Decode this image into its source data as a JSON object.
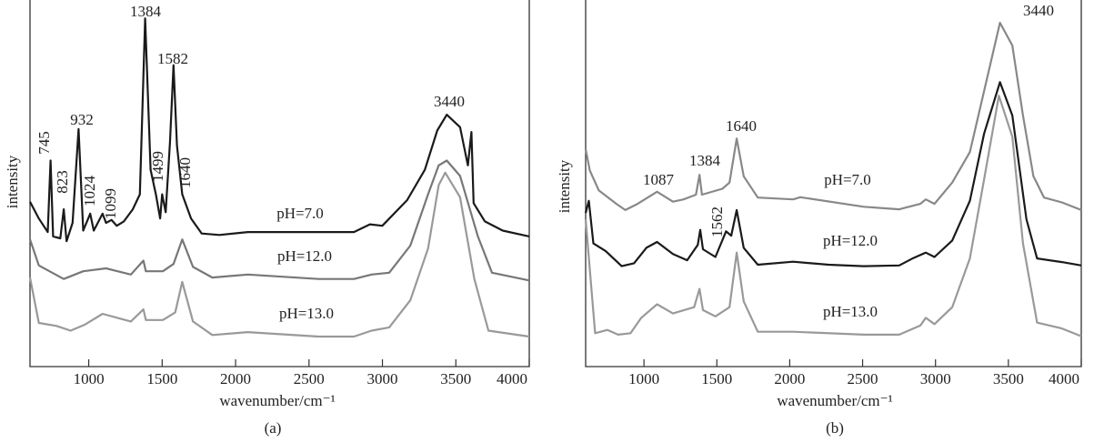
{
  "chart_data": [
    {
      "type": "line",
      "panel_label": "(a)",
      "xlabel": "wavenumber/cm⁻¹",
      "ylabel": "intensity",
      "xlim": [
        600,
        4000
      ],
      "ylim": [
        0,
        100
      ],
      "xticks": [
        1000,
        1500,
        2000,
        2500,
        3000,
        3500,
        4000
      ],
      "y_ticks_shown": false,
      "grid": false,
      "annotations": [
        "1384",
        "1582",
        "932",
        "745",
        "823",
        "1024",
        "1099",
        "1499",
        "1640",
        "3440"
      ],
      "series": [
        {
          "name": "pH=7.0",
          "color": "#1a1a1a",
          "points": [
            [
              600,
              45
            ],
            [
              660,
              40.4
            ],
            [
              721,
              36.7
            ],
            [
              740,
              56.2
            ],
            [
              757,
              35.5
            ],
            [
              806,
              35
            ],
            [
              830,
              42.9
            ],
            [
              849,
              34.2
            ],
            [
              890,
              39.2
            ],
            [
              931,
              64.8
            ],
            [
              962,
              37.1
            ],
            [
              1010,
              41.7
            ],
            [
              1034,
              37.1
            ],
            [
              1094,
              41.7
            ],
            [
              1118,
              39.2
            ],
            [
              1155,
              40
            ],
            [
              1191,
              38.4
            ],
            [
              1239,
              39.6
            ],
            [
              1300,
              42.9
            ],
            [
              1348,
              47
            ],
            [
              1384,
              95
            ],
            [
              1421,
              53.7
            ],
            [
              1457,
              47
            ],
            [
              1486,
              40.4
            ],
            [
              1500,
              47
            ],
            [
              1524,
              42.1
            ],
            [
              1553,
              61.1
            ],
            [
              1577,
              82.2
            ],
            [
              1601,
              60.3
            ],
            [
              1637,
              47
            ],
            [
              1697,
              40.4
            ],
            [
              1769,
              36.3
            ],
            [
              1890,
              35.9
            ],
            [
              2083,
              36.7
            ],
            [
              2565,
              36.7
            ],
            [
              2806,
              36.7
            ],
            [
              2915,
              38.8
            ],
            [
              2999,
              38.4
            ],
            [
              3168,
              45.4
            ],
            [
              3289,
              53.7
            ],
            [
              3373,
              64.4
            ],
            [
              3438,
              68.7
            ],
            [
              3529,
              65.3
            ],
            [
              3582,
              54.9
            ],
            [
              3606,
              64
            ],
            [
              3621,
              44.6
            ],
            [
              3698,
              39.6
            ],
            [
              3819,
              37.1
            ],
            [
              4000,
              35.5
            ]
          ]
        },
        {
          "name": "pH=12.0",
          "color": "#777777",
          "points": [
            [
              600,
              34.7
            ],
            [
              660,
              27.6
            ],
            [
              830,
              23.9
            ],
            [
              962,
              26
            ],
            [
              1118,
              26.8
            ],
            [
              1287,
              25.1
            ],
            [
              1372,
              28.9
            ],
            [
              1389,
              26
            ],
            [
              1505,
              26
            ],
            [
              1577,
              28
            ],
            [
              1637,
              34.7
            ],
            [
              1710,
              27.2
            ],
            [
              1842,
              24.3
            ],
            [
              2083,
              25.1
            ],
            [
              2565,
              23.9
            ],
            [
              2806,
              23.9
            ],
            [
              2926,
              25.1
            ],
            [
              3046,
              25.6
            ],
            [
              3190,
              33
            ],
            [
              3311,
              47
            ],
            [
              3383,
              54.9
            ],
            [
              3438,
              56.2
            ],
            [
              3529,
              52
            ],
            [
              3650,
              35.5
            ],
            [
              3746,
              25.6
            ],
            [
              4000,
              23.5
            ]
          ]
        },
        {
          "name": "pH=13.0",
          "color": "#999999",
          "points": [
            [
              600,
              24.3
            ],
            [
              660,
              11.9
            ],
            [
              781,
              11.1
            ],
            [
              877,
              9.8
            ],
            [
              975,
              11.5
            ],
            [
              1094,
              14.4
            ],
            [
              1287,
              12.3
            ],
            [
              1372,
              15.6
            ],
            [
              1389,
              12.7
            ],
            [
              1505,
              12.7
            ],
            [
              1589,
              14.8
            ],
            [
              1637,
              23.1
            ],
            [
              1710,
              12.3
            ],
            [
              1842,
              8.6
            ],
            [
              2083,
              9.4
            ],
            [
              2565,
              8.2
            ],
            [
              2806,
              8.2
            ],
            [
              2926,
              9.8
            ],
            [
              3046,
              10.7
            ],
            [
              3190,
              18.1
            ],
            [
              3311,
              32.2
            ],
            [
              3383,
              49.5
            ],
            [
              3428,
              52.9
            ],
            [
              3529,
              46.2
            ],
            [
              3626,
              23.9
            ],
            [
              3722,
              9.8
            ],
            [
              4000,
              8.2
            ]
          ]
        }
      ]
    },
    {
      "type": "line",
      "panel_label": "(b)",
      "xlabel": "wavenumber/cm⁻¹",
      "ylabel": "intensity",
      "xlim": [
        600,
        4000
      ],
      "ylim": [
        0,
        100
      ],
      "xticks": [
        1000,
        1500,
        2000,
        2500,
        3000,
        3500,
        4000
      ],
      "y_ticks_shown": false,
      "grid": false,
      "annotations": [
        "3440",
        "1640",
        "1384",
        "1087",
        "1562"
      ],
      "series": [
        {
          "name": "pH=7.0",
          "color": "#888888",
          "points": [
            [
              600,
              59.3
            ],
            [
              629,
              53.5
            ],
            [
              690,
              48.1
            ],
            [
              811,
              44.4
            ],
            [
              872,
              42.7
            ],
            [
              956,
              44.4
            ],
            [
              1090,
              47.7
            ],
            [
              1199,
              45
            ],
            [
              1272,
              45.6
            ],
            [
              1357,
              46.9
            ],
            [
              1381,
              52.3
            ],
            [
              1398,
              46.9
            ],
            [
              1538,
              48.5
            ],
            [
              1587,
              50.2
            ],
            [
              1636,
              62.2
            ],
            [
              1684,
              51.9
            ],
            [
              1781,
              46.1
            ],
            [
              2023,
              45.6
            ],
            [
              2072,
              46.2
            ],
            [
              2508,
              43.6
            ],
            [
              2751,
              42.9
            ],
            [
              2896,
              44.4
            ],
            [
              2933,
              45.6
            ],
            [
              2993,
              44.4
            ],
            [
              3115,
              50.2
            ],
            [
              3236,
              58.5
            ],
            [
              3333,
              75.1
            ],
            [
              3442,
              93.8
            ],
            [
              3527,
              87.6
            ],
            [
              3600,
              68.5
            ],
            [
              3672,
              51.9
            ],
            [
              3745,
              46.1
            ],
            [
              3867,
              44.8
            ],
            [
              4000,
              42.7
            ]
          ]
        },
        {
          "name": "pH=12.0",
          "color": "#1a1a1a",
          "points": [
            [
              600,
              41.9
            ],
            [
              622,
              45.2
            ],
            [
              653,
              33.6
            ],
            [
              738,
              31.5
            ],
            [
              847,
              27.4
            ],
            [
              932,
              28.2
            ],
            [
              1017,
              32.4
            ],
            [
              1090,
              34
            ],
            [
              1199,
              30.7
            ],
            [
              1296,
              29
            ],
            [
              1369,
              33.2
            ],
            [
              1386,
              37.3
            ],
            [
              1405,
              32
            ],
            [
              1490,
              29.9
            ],
            [
              1563,
              36.9
            ],
            [
              1599,
              35.7
            ],
            [
              1636,
              42.7
            ],
            [
              1684,
              32.4
            ],
            [
              1781,
              27.8
            ],
            [
              2023,
              28.6
            ],
            [
              2266,
              27.8
            ],
            [
              2508,
              27.4
            ],
            [
              2751,
              27.6
            ],
            [
              2848,
              29.6
            ],
            [
              2933,
              31.1
            ],
            [
              2993,
              29.9
            ],
            [
              3115,
              34.4
            ],
            [
              3236,
              45.2
            ],
            [
              3333,
              63.5
            ],
            [
              3442,
              77.6
            ],
            [
              3527,
              68.5
            ],
            [
              3624,
              40.2
            ],
            [
              3697,
              29.5
            ],
            [
              3867,
              28.5
            ],
            [
              4000,
              27.6
            ]
          ]
        },
        {
          "name": "pH=13.0",
          "color": "#999999",
          "points": [
            [
              600,
              40.2
            ],
            [
              665,
              9.1
            ],
            [
              750,
              10
            ],
            [
              823,
              8.7
            ],
            [
              908,
              9.1
            ],
            [
              981,
              13.3
            ],
            [
              1090,
              17
            ],
            [
              1199,
              14.5
            ],
            [
              1344,
              16.2
            ],
            [
              1381,
              21.2
            ],
            [
              1405,
              15.4
            ],
            [
              1490,
              13.7
            ],
            [
              1587,
              16.2
            ],
            [
              1636,
              31.1
            ],
            [
              1684,
              17.8
            ],
            [
              1781,
              9.5
            ],
            [
              2023,
              9.5
            ],
            [
              2508,
              8.7
            ],
            [
              2751,
              8.7
            ],
            [
              2896,
              11.2
            ],
            [
              2933,
              13.3
            ],
            [
              2993,
              11.6
            ],
            [
              3115,
              16.2
            ],
            [
              3236,
              29.5
            ],
            [
              3333,
              51
            ],
            [
              3435,
              73.9
            ],
            [
              3527,
              62.7
            ],
            [
              3600,
              33.6
            ],
            [
              3697,
              12
            ],
            [
              3867,
              10.4
            ],
            [
              4000,
              8.3
            ]
          ]
        }
      ]
    }
  ]
}
